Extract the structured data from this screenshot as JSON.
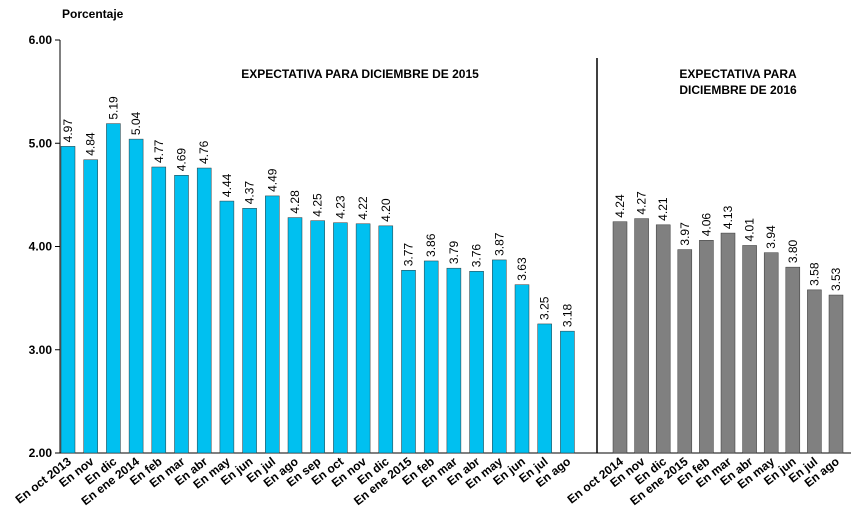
{
  "chart_data": [
    {
      "type": "bar",
      "ylabel": "Porcentaje",
      "annotation": [
        "EXPECTATIVA  PARA  DICIEMBRE DE 2015"
      ],
      "ylim": [
        2,
        6
      ],
      "yticks": [
        {
          "value": 2,
          "label": "2.00"
        },
        {
          "value": 3,
          "label": "3.00"
        },
        {
          "value": 4,
          "label": "4.00"
        },
        {
          "value": 5,
          "label": "5.00"
        },
        {
          "value": 6,
          "label": "6.00"
        }
      ],
      "categories": [
        "En oct 2013",
        "En nov",
        "En dic",
        "En ene 2014",
        "En feb",
        "En mar",
        "En abr",
        "En may",
        "En jun",
        "En jul",
        "En ago",
        "En sep",
        "En oct",
        "En nov",
        "En dic",
        "En ene 2015",
        "En feb",
        "En mar",
        "En abr",
        "En may",
        "En jun",
        "En jul",
        "En ago"
      ],
      "color": "#00c0f0",
      "values": [
        4.97,
        4.84,
        5.19,
        5.04,
        4.77,
        4.69,
        4.76,
        4.44,
        4.37,
        4.49,
        4.28,
        4.25,
        4.23,
        4.22,
        4.2,
        3.77,
        3.86,
        3.79,
        3.76,
        3.87,
        3.63,
        3.25,
        3.18
      ],
      "value_labels": [
        "4.97",
        "4.84",
        "5.19",
        "5.04",
        "4.77",
        "4.69",
        "4.76",
        "4.44",
        "4.37",
        "4.49",
        "4.28",
        "4.25",
        "4.23",
        "4.22",
        "4.20",
        "3.77",
        "3.86",
        "3.79",
        "3.76",
        "3.87",
        "3.63",
        "3.25",
        "3.18"
      ]
    },
    {
      "type": "bar",
      "annotation": [
        "EXPECTATIVA  PARA",
        "DICIEMBRE DE 2016"
      ],
      "ylim": [
        2,
        6
      ],
      "categories": [
        "En oct 2014",
        "En nov",
        "En dic",
        "En ene 2015",
        "En feb",
        "En mar",
        "En abr",
        "En may",
        "En jun",
        "En jul",
        "En ago"
      ],
      "color": "#808080",
      "values": [
        4.24,
        4.27,
        4.21,
        3.97,
        4.06,
        4.13,
        4.01,
        3.94,
        3.8,
        3.58,
        3.53
      ],
      "value_labels": [
        "4.24",
        "4.27",
        "4.21",
        "3.97",
        "4.06",
        "4.13",
        "4.01",
        "3.94",
        "3.80",
        "3.58",
        "3.53"
      ]
    }
  ]
}
